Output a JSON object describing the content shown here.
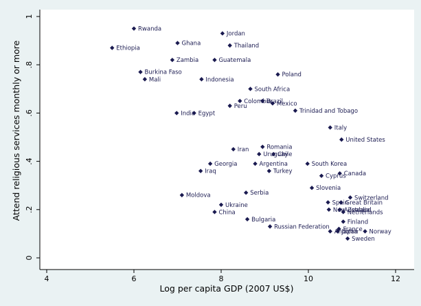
{
  "chart_data": {
    "type": "scatter",
    "title": "",
    "xlabel": "Log per capita GDP (2007 US$)",
    "ylabel": "Attend religious services monthly or more",
    "xlim": [
      4,
      12
    ],
    "ylim": [
      0,
      1
    ],
    "xticks": [
      4,
      6,
      8,
      10,
      12
    ],
    "yticks": [
      {
        "value": 0,
        "label": "0"
      },
      {
        "value": 0.2,
        "label": ".2"
      },
      {
        "value": 0.4,
        "label": ".4"
      },
      {
        "value": 0.6,
        "label": ".6"
      },
      {
        "value": 0.8,
        "label": ".8"
      },
      {
        "value": 1,
        "label": "1"
      }
    ],
    "marker_color": "#1a1a50",
    "background_color": "#eaf2f3",
    "points": [
      {
        "label": "Rwanda",
        "x": 6.0,
        "y": 0.95
      },
      {
        "label": "Jordan",
        "x": 8.03,
        "y": 0.93
      },
      {
        "label": "Ghana",
        "x": 7.0,
        "y": 0.89
      },
      {
        "label": "Thailand",
        "x": 8.2,
        "y": 0.88
      },
      {
        "label": "Ethiopia",
        "x": 5.5,
        "y": 0.87
      },
      {
        "label": "Zambia",
        "x": 6.88,
        "y": 0.82
      },
      {
        "label": "Guatemala",
        "x": 7.85,
        "y": 0.82
      },
      {
        "label": "Burkina Faso",
        "x": 6.15,
        "y": 0.77
      },
      {
        "label": "Mali",
        "x": 6.25,
        "y": 0.74
      },
      {
        "label": "Indonesia",
        "x": 7.55,
        "y": 0.74
      },
      {
        "label": "Poland",
        "x": 9.3,
        "y": 0.76
      },
      {
        "label": "South Africa",
        "x": 8.67,
        "y": 0.7
      },
      {
        "label": "Colombia",
        "x": 8.43,
        "y": 0.65
      },
      {
        "label": "Brazil",
        "x": 8.95,
        "y": 0.65
      },
      {
        "label": "Mexico",
        "x": 9.18,
        "y": 0.64
      },
      {
        "label": "Peru",
        "x": 8.2,
        "y": 0.63
      },
      {
        "label": "India",
        "x": 6.98,
        "y": 0.6
      },
      {
        "label": "Egypt",
        "x": 7.38,
        "y": 0.6
      },
      {
        "label": "Trinidad and Tobago",
        "x": 9.7,
        "y": 0.61
      },
      {
        "label": "Italy",
        "x": 10.5,
        "y": 0.54
      },
      {
        "label": "United States",
        "x": 10.76,
        "y": 0.49
      },
      {
        "label": "Iran",
        "x": 8.28,
        "y": 0.45
      },
      {
        "label": "Romania",
        "x": 8.95,
        "y": 0.46
      },
      {
        "label": "Uruguay",
        "x": 8.87,
        "y": 0.43
      },
      {
        "label": "Chile",
        "x": 9.2,
        "y": 0.43
      },
      {
        "label": "Georgia",
        "x": 7.75,
        "y": 0.39
      },
      {
        "label": "Argentina",
        "x": 8.78,
        "y": 0.39
      },
      {
        "label": "South Korea",
        "x": 9.98,
        "y": 0.39
      },
      {
        "label": "Iraq",
        "x": 7.53,
        "y": 0.36
      },
      {
        "label": "Turkey",
        "x": 9.1,
        "y": 0.36
      },
      {
        "label": "Canada",
        "x": 10.72,
        "y": 0.35
      },
      {
        "label": "Cyprus",
        "x": 10.3,
        "y": 0.34
      },
      {
        "label": "Slovenia",
        "x": 10.08,
        "y": 0.29
      },
      {
        "label": "Serbia",
        "x": 8.57,
        "y": 0.27
      },
      {
        "label": "Moldova",
        "x": 7.1,
        "y": 0.26
      },
      {
        "label": "Switzerland",
        "x": 10.96,
        "y": 0.25
      },
      {
        "label": "Spain",
        "x": 10.45,
        "y": 0.23
      },
      {
        "label": "Great Britain",
        "x": 10.75,
        "y": 0.23
      },
      {
        "label": "Ukraine",
        "x": 8.0,
        "y": 0.22
      },
      {
        "label": "New Zealand",
        "x": 10.47,
        "y": 0.2
      },
      {
        "label": "Australia",
        "x": 10.72,
        "y": 0.2
      },
      {
        "label": "Netherlands",
        "x": 10.8,
        "y": 0.19
      },
      {
        "label": "China",
        "x": 7.85,
        "y": 0.19
      },
      {
        "label": "Bulgaria",
        "x": 8.6,
        "y": 0.16
      },
      {
        "label": "Finland",
        "x": 10.8,
        "y": 0.15
      },
      {
        "label": "Russian Federation",
        "x": 9.12,
        "y": 0.13
      },
      {
        "label": "France",
        "x": 10.7,
        "y": 0.12
      },
      {
        "label": "Andorra",
        "x": 10.5,
        "y": 0.11
      },
      {
        "label": "Norway",
        "x": 11.3,
        "y": 0.11
      },
      {
        "label": "Japan",
        "x": 10.67,
        "y": 0.11
      },
      {
        "label": "Sweden",
        "x": 10.9,
        "y": 0.08
      }
    ]
  }
}
